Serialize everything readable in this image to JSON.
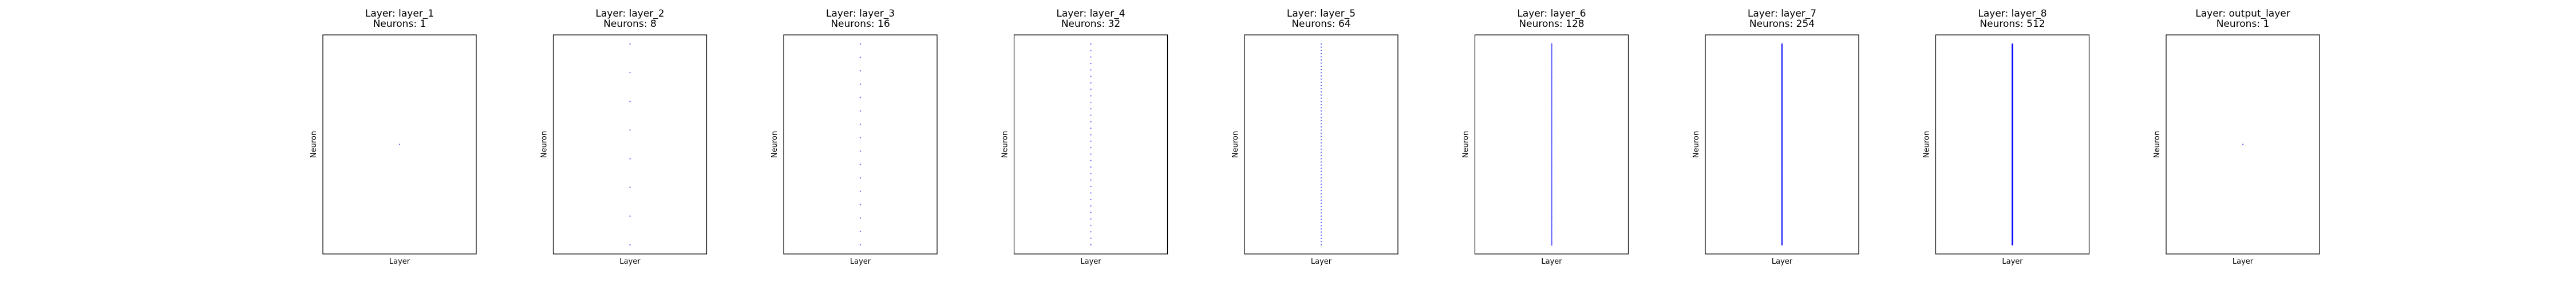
{
  "colors": {
    "point": "#0000ff",
    "frame": "#000000",
    "background": "#ffffff"
  },
  "chart_data": [
    {
      "type": "scatter",
      "title": "Layer: layer_1",
      "subtitle": "Neurons: 1",
      "xlabel": "Layer",
      "ylabel": "Neuron",
      "neuron_count": 1,
      "x_ticks": [],
      "y_ticks": [],
      "grid": false
    },
    {
      "type": "scatter",
      "title": "Layer: layer_2",
      "subtitle": "Neurons: 8",
      "xlabel": "Layer",
      "ylabel": "Neuron",
      "neuron_count": 8,
      "x_ticks": [],
      "y_ticks": [],
      "grid": false
    },
    {
      "type": "scatter",
      "title": "Layer: layer_3",
      "subtitle": "Neurons: 16",
      "xlabel": "Layer",
      "ylabel": "Neuron",
      "neuron_count": 16,
      "x_ticks": [],
      "y_ticks": [],
      "grid": false
    },
    {
      "type": "scatter",
      "title": "Layer: layer_4",
      "subtitle": "Neurons: 32",
      "xlabel": "Layer",
      "ylabel": "Neuron",
      "neuron_count": 32,
      "x_ticks": [],
      "y_ticks": [],
      "grid": false
    },
    {
      "type": "scatter",
      "title": "Layer: layer_5",
      "subtitle": "Neurons: 64",
      "xlabel": "Layer",
      "ylabel": "Neuron",
      "neuron_count": 64,
      "x_ticks": [],
      "y_ticks": [],
      "grid": false
    },
    {
      "type": "scatter",
      "title": "Layer: layer_6",
      "subtitle": "Neurons: 128",
      "xlabel": "Layer",
      "ylabel": "Neuron",
      "neuron_count": 128,
      "x_ticks": [],
      "y_ticks": [],
      "grid": false
    },
    {
      "type": "scatter",
      "title": "Layer: layer_7",
      "subtitle": "Neurons: 254",
      "xlabel": "Layer",
      "ylabel": "Neuron",
      "neuron_count": 254,
      "x_ticks": [],
      "y_ticks": [],
      "grid": false
    },
    {
      "type": "scatter",
      "title": "Layer: layer_8",
      "subtitle": "Neurons: 512",
      "xlabel": "Layer",
      "ylabel": "Neuron",
      "neuron_count": 512,
      "x_ticks": [],
      "y_ticks": [],
      "grid": false
    },
    {
      "type": "scatter",
      "title": "Layer: output_layer",
      "subtitle": "Neurons: 1",
      "xlabel": "Layer",
      "ylabel": "Neuron",
      "neuron_count": 1,
      "x_ticks": [],
      "y_ticks": [],
      "grid": false
    }
  ]
}
